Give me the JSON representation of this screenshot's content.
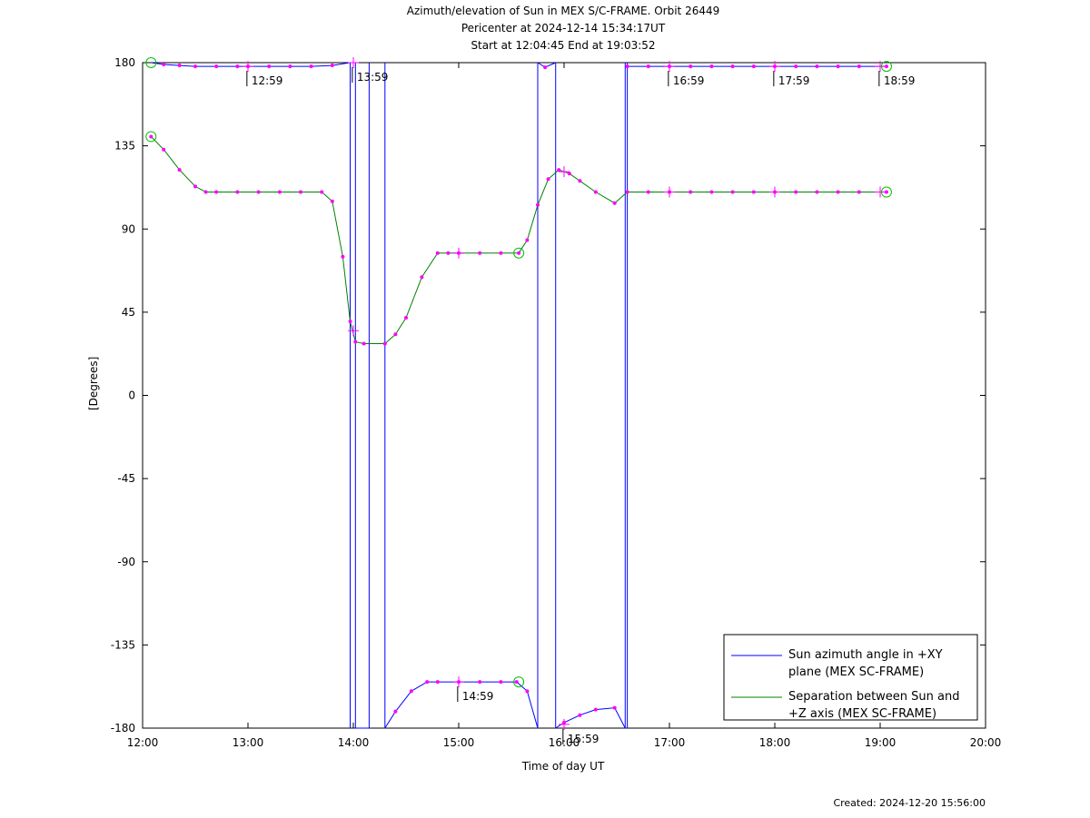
{
  "chart_data": {
    "type": "line",
    "title": "Azimuth/elevation of Sun in MEX S/C-FRAME.  Orbit 26449",
    "subtitle_lines": [
      "Pericenter at 2024-12-14 15:34:17UT",
      "Start at 12:04:45 End at 19:03:52"
    ],
    "xlabel": "Time of day UT",
    "ylabel": "[Degrees]",
    "xlim": [
      12,
      20
    ],
    "ylim": [
      -180,
      180
    ],
    "xticks": [
      12,
      13,
      14,
      15,
      16,
      17,
      18,
      19,
      20
    ],
    "xtick_labels": [
      "12:00",
      "13:00",
      "14:00",
      "15:00",
      "16:00",
      "17:00",
      "18:00",
      "19:00",
      "20:00"
    ],
    "yticks": [
      180,
      135,
      90,
      45,
      0,
      -45,
      -90,
      -135,
      -180
    ],
    "ytick_labels": [
      "180",
      "135",
      "90",
      "45",
      "0",
      "-45",
      "-90",
      "-135",
      "-180"
    ],
    "grid": false,
    "legend_position": "bottom-right",
    "series": [
      {
        "name": "Sun azimuth angle in +XY plane (MEX SC-FRAME)",
        "legend_lines": [
          "Sun azimuth angle in +XY",
          "plane (MEX SC-FRAME)"
        ],
        "color": "#0000ff",
        "segments": [
          [
            [
              12.08,
              180
            ],
            [
              12.2,
              179
            ],
            [
              12.35,
              178.5
            ],
            [
              12.5,
              178
            ],
            [
              12.7,
              178
            ],
            [
              12.9,
              178
            ],
            [
              13.0,
              178
            ],
            [
              13.2,
              178
            ],
            [
              13.4,
              178
            ],
            [
              13.6,
              178
            ],
            [
              13.8,
              178.5
            ],
            [
              13.97,
              180
            ]
          ],
          [
            [
              14.02,
              -180
            ],
            [
              14.15,
              -180
            ]
          ],
          [
            [
              14.3,
              -180
            ],
            [
              14.4,
              -171
            ],
            [
              14.55,
              -160
            ],
            [
              14.7,
              -155
            ],
            [
              14.8,
              -155
            ],
            [
              15.0,
              -155
            ],
            [
              15.2,
              -155
            ],
            [
              15.4,
              -155
            ],
            [
              15.55,
              -155
            ],
            [
              15.65,
              -160
            ],
            [
              15.75,
              -180
            ]
          ],
          [
            [
              15.75,
              180
            ],
            [
              15.82,
              177.5
            ],
            [
              15.92,
              180
            ]
          ],
          [
            [
              15.92,
              -180
            ],
            [
              16.0,
              -177
            ],
            [
              16.15,
              -173
            ],
            [
              16.3,
              -170
            ],
            [
              16.48,
              -169
            ],
            [
              16.58,
              -180
            ]
          ],
          [
            [
              16.6,
              178
            ],
            [
              16.8,
              178
            ],
            [
              17.0,
              178
            ],
            [
              17.2,
              178
            ],
            [
              17.4,
              178
            ],
            [
              17.6,
              178
            ],
            [
              17.8,
              178
            ],
            [
              18.0,
              178
            ],
            [
              18.2,
              178
            ],
            [
              18.4,
              178
            ],
            [
              18.6,
              178
            ],
            [
              18.8,
              178
            ],
            [
              19.06,
              178
            ]
          ]
        ],
        "wraps": [
          [
            13.97,
            14.02
          ],
          [
            14.15,
            14.3
          ],
          [
            15.75,
            15.92
          ],
          [
            16.58,
            16.6
          ]
        ]
      },
      {
        "name": "Separation between Sun and +Z axis (MEX SC-FRAME)",
        "legend_lines": [
          "Separation between Sun and",
          "+Z axis (MEX SC-FRAME)"
        ],
        "color": "#008000",
        "points": [
          [
            12.08,
            140
          ],
          [
            12.2,
            133
          ],
          [
            12.35,
            122
          ],
          [
            12.5,
            113
          ],
          [
            12.6,
            110
          ],
          [
            12.7,
            110
          ],
          [
            12.9,
            110
          ],
          [
            13.1,
            110
          ],
          [
            13.3,
            110
          ],
          [
            13.5,
            110
          ],
          [
            13.7,
            110
          ],
          [
            13.8,
            105
          ],
          [
            13.9,
            75
          ],
          [
            13.97,
            40
          ],
          [
            14.02,
            29
          ],
          [
            14.1,
            28
          ],
          [
            14.3,
            28
          ],
          [
            14.4,
            33
          ],
          [
            14.5,
            42
          ],
          [
            14.65,
            64
          ],
          [
            14.8,
            77
          ],
          [
            14.9,
            77
          ],
          [
            15.0,
            77
          ],
          [
            15.2,
            77
          ],
          [
            15.4,
            77
          ],
          [
            15.57,
            77
          ],
          [
            15.65,
            84
          ],
          [
            15.75,
            103
          ],
          [
            15.85,
            117
          ],
          [
            15.95,
            122
          ],
          [
            16.05,
            120
          ],
          [
            16.15,
            116
          ],
          [
            16.3,
            110
          ],
          [
            16.48,
            104
          ],
          [
            16.6,
            110
          ],
          [
            16.8,
            110
          ],
          [
            17.0,
            110
          ],
          [
            17.2,
            110
          ],
          [
            17.4,
            110
          ],
          [
            17.6,
            110
          ],
          [
            17.8,
            110
          ],
          [
            18.0,
            110
          ],
          [
            18.2,
            110
          ],
          [
            18.4,
            110
          ],
          [
            18.6,
            110
          ],
          [
            18.8,
            110
          ],
          [
            19.06,
            110
          ]
        ]
      }
    ],
    "annotations": [
      {
        "label": "12:59",
        "x": 12.99,
        "y": 178
      },
      {
        "label": "13:59",
        "x": 13.99,
        "y": 180
      },
      {
        "label": "14:59",
        "x": 14.99,
        "y": -155
      },
      {
        "label": "15:59",
        "x": 15.99,
        "y": -178
      },
      {
        "label": "16:59",
        "x": 16.99,
        "y": 178
      },
      {
        "label": "17:59",
        "x": 17.99,
        "y": 178
      },
      {
        "label": "18:59",
        "x": 18.99,
        "y": 178
      }
    ],
    "circle_markers": [
      [
        12.08,
        180
      ],
      [
        12.08,
        140
      ],
      [
        15.57,
        77
      ],
      [
        15.57,
        -155
      ],
      [
        19.06,
        178
      ],
      [
        19.06,
        110
      ]
    ],
    "cross_markers": [
      [
        13.0,
        178
      ],
      [
        14.0,
        35
      ],
      [
        14.0,
        180
      ],
      [
        15.0,
        77
      ],
      [
        15.0,
        -155
      ],
      [
        16.0,
        121
      ],
      [
        16.0,
        -178
      ],
      [
        17.0,
        178
      ],
      [
        17.0,
        110
      ],
      [
        18.0,
        178
      ],
      [
        18.0,
        110
      ],
      [
        19.0,
        178
      ],
      [
        19.0,
        110
      ]
    ]
  },
  "footer": {
    "created": "Created: 2024-12-20 15:56:00"
  },
  "colors": {
    "marker_dot": "#ff00ff",
    "marker_circle": "#00c000",
    "axis": "#000000"
  }
}
